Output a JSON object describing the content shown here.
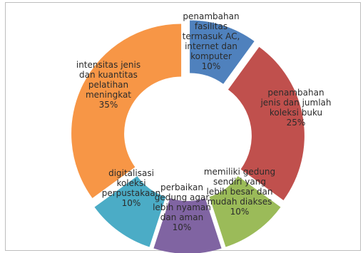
{
  "chart_data": {
    "type": "doughnut",
    "title": "",
    "legend": "none",
    "unit": "%",
    "slices": [
      {
        "label": "penambahan fasilitas termasuk AC, internet dan komputer",
        "value": 10,
        "value_label": "10%",
        "color": "#4f81bd",
        "label_lines": [
          "penambahan",
          "fasilitas",
          "termasuk AC,",
          "internet dan",
          "komputer",
          "10%"
        ]
      },
      {
        "label": "penambahan jenis dan jumlah koleksi buku",
        "value": 25,
        "value_label": "25%",
        "color": "#c0504d",
        "label_lines": [
          "penambahan",
          "jenis dan jumlah",
          "koleksi buku",
          "25%"
        ]
      },
      {
        "label": "memiliki gedung sendiri yang lebih besar dan mudah diakses",
        "value": 10,
        "value_label": "10%",
        "color": "#9bbb59",
        "label_lines": [
          "memiliki gedung",
          "sendiri yang",
          "lebih besar dan",
          "mudah diakses",
          "10%"
        ]
      },
      {
        "label": "perbaikan gedung agar lebih nyaman dan aman",
        "value": 10,
        "value_label": "10%",
        "color": "#8064a2",
        "label_lines": [
          "perbaikan",
          "gedung agar",
          "lebih nyaman",
          "dan aman",
          "10%"
        ]
      },
      {
        "label": "digitalisasi koleksi perpustakaan",
        "value": 10,
        "value_label": "10%",
        "color": "#4bacc6",
        "label_lines": [
          "digitalisasi",
          "koleksi",
          "perpustakaan",
          "10%"
        ]
      },
      {
        "label": "intensitas jenis dan kuantitas pelatihan meningkat",
        "value": 35,
        "value_label": "35%",
        "color": "#f79646",
        "label_lines": [
          "intensitas jenis",
          "dan kuantitas",
          "pelatihan",
          "meningkat",
          "35%"
        ]
      }
    ]
  }
}
